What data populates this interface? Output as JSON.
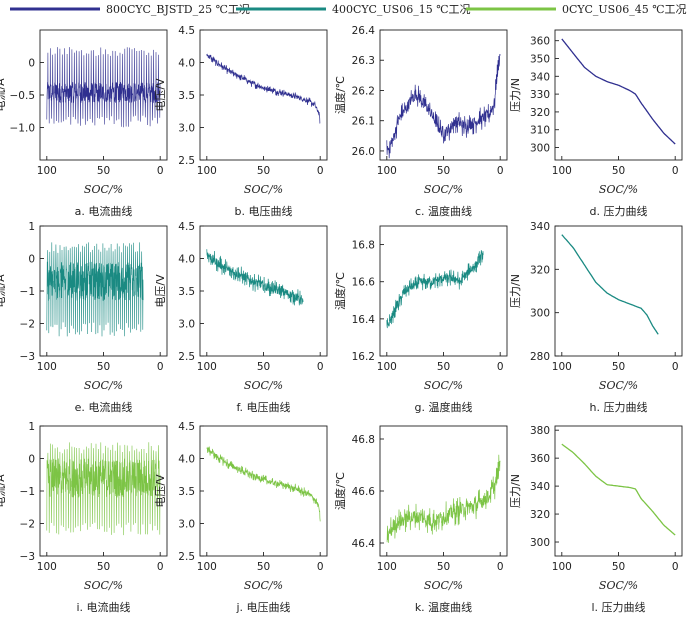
{
  "legend": [
    {
      "label": "800CYC_BJSTD_25 ℃工况",
      "color": "#303090"
    },
    {
      "label": "400CYC_US06_15 ℃工况",
      "color": "#1a8a82"
    },
    {
      "label": "0CYC_US06_45 ℃工况",
      "color": "#7cc445"
    }
  ],
  "chart_data": [
    {
      "type": "line",
      "caption": "a.  电流曲线",
      "xlabel": "SOC/%",
      "ylabel": "电流/A",
      "color": "#303090",
      "kind": "current",
      "xlim": [
        106,
        -6
      ],
      "xticks": [
        100,
        50,
        0
      ],
      "xdata": [
        100,
        0
      ],
      "ylim": [
        -1.5,
        0.5
      ],
      "yticks": [
        0,
        -0.5,
        -1.0
      ],
      "yticklabels": [
        "0",
        "−0.5",
        "−1.0"
      ],
      "series": [
        {
          "y_min": -1.0,
          "y_max": 0.25,
          "y_dense_low": -0.62,
          "y_dense_high": -0.3
        }
      ]
    },
    {
      "type": "line",
      "caption": "b.  电压曲线",
      "xlabel": "SOC/%",
      "ylabel": "电压/V",
      "color": "#303090",
      "kind": "curve",
      "xlim": [
        106,
        -6
      ],
      "xticks": [
        100,
        50,
        0
      ],
      "ylim": [
        2.5,
        4.5
      ],
      "yticks": [
        2.5,
        3.0,
        3.5,
        4.0,
        4.5
      ],
      "yticklabels": [
        "2.5",
        "3.0",
        "3.5",
        "4.0",
        "4.5"
      ],
      "noise": 0.08,
      "series": [
        {
          "x": [
            100,
            90,
            80,
            70,
            60,
            50,
            40,
            30,
            20,
            10,
            5,
            1,
            0
          ],
          "y": [
            4.12,
            3.98,
            3.86,
            3.78,
            3.68,
            3.61,
            3.56,
            3.52,
            3.47,
            3.4,
            3.35,
            3.22,
            3.05
          ]
        }
      ]
    },
    {
      "type": "line",
      "caption": "c.  温度曲线",
      "xlabel": "SOC/%",
      "ylabel": "温度/℃",
      "color": "#303090",
      "kind": "curve",
      "xlim": [
        106,
        -6
      ],
      "xticks": [
        100,
        50,
        0
      ],
      "ylim": [
        25.97,
        26.4
      ],
      "yticks": [
        26.0,
        26.1,
        26.2,
        26.3,
        26.4
      ],
      "yticklabels": [
        "26.0",
        "26.1",
        "26.2",
        "26.3",
        "26.4"
      ],
      "noise": 0.05,
      "series": [
        {
          "x": [
            100,
            95,
            90,
            80,
            75,
            70,
            60,
            55,
            50,
            45,
            40,
            30,
            20,
            10,
            5,
            3,
            0
          ],
          "y": [
            26.0,
            26.03,
            26.1,
            26.16,
            26.19,
            26.17,
            26.12,
            26.08,
            26.06,
            26.07,
            26.1,
            26.08,
            26.1,
            26.12,
            26.16,
            26.24,
            26.32
          ]
        }
      ]
    },
    {
      "type": "line",
      "caption": "d.  压力曲线",
      "xlabel": "SOC/%",
      "ylabel": "压力/N",
      "color": "#303090",
      "kind": "curve",
      "xlim": [
        106,
        -6
      ],
      "xticks": [
        100,
        50,
        0
      ],
      "ylim": [
        293,
        366
      ],
      "yticks": [
        300,
        310,
        320,
        330,
        340,
        350,
        360
      ],
      "yticklabels": [
        "300",
        "310",
        "320",
        "330",
        "340",
        "350",
        "360"
      ],
      "noise": 0,
      "series": [
        {
          "x": [
            100,
            90,
            80,
            70,
            60,
            50,
            40,
            35,
            30,
            20,
            10,
            0
          ],
          "y": [
            361,
            353,
            345,
            340,
            337,
            335,
            332,
            330,
            325,
            316,
            308,
            302
          ]
        }
      ]
    },
    {
      "type": "line",
      "caption": "e.  电流曲线",
      "xlabel": "SOC/%",
      "ylabel": "电流/A",
      "color": "#1a8a82",
      "kind": "current",
      "xlim": [
        106,
        -6
      ],
      "xticks": [
        100,
        50,
        0
      ],
      "xdata": [
        100,
        15
      ],
      "ylim": [
        -3,
        1
      ],
      "yticks": [
        1,
        0,
        -1,
        -2,
        -3
      ],
      "yticklabels": [
        "1",
        "0",
        "−1",
        "−2",
        "−3"
      ],
      "series": [
        {
          "y_min": -2.4,
          "y_max": 0.5,
          "y_dense_low": -1.3,
          "y_dense_high": -0.1
        }
      ]
    },
    {
      "type": "line",
      "caption": "f.  电压曲线",
      "xlabel": "SOC/%",
      "ylabel": "电压/V",
      "color": "#1a8a82",
      "kind": "curve",
      "xlim": [
        106,
        -6
      ],
      "xticks": [
        100,
        50,
        0
      ],
      "ylim": [
        2.5,
        4.5
      ],
      "yticks": [
        2.5,
        3.0,
        3.5,
        4.0,
        4.5
      ],
      "yticklabels": [
        "2.5",
        "3.0",
        "3.5",
        "4.0",
        "4.5"
      ],
      "noise": 0.18,
      "series": [
        {
          "x": [
            100,
            90,
            80,
            70,
            60,
            50,
            40,
            30,
            20,
            15
          ],
          "y": [
            4.08,
            3.92,
            3.82,
            3.74,
            3.65,
            3.58,
            3.52,
            3.47,
            3.4,
            3.32
          ]
        }
      ]
    },
    {
      "type": "line",
      "caption": "g.  温度曲线",
      "xlabel": "SOC/%",
      "ylabel": "温度/℃",
      "color": "#1a8a82",
      "kind": "curve",
      "xlim": [
        106,
        -6
      ],
      "xticks": [
        100,
        50,
        0
      ],
      "ylim": [
        16.2,
        16.9
      ],
      "yticks": [
        16.2,
        16.4,
        16.6,
        16.8
      ],
      "yticklabels": [
        "16.2",
        "16.4",
        "16.6",
        "16.8"
      ],
      "noise": 0.06,
      "series": [
        {
          "x": [
            100,
            95,
            90,
            85,
            80,
            75,
            70,
            60,
            50,
            40,
            35,
            30,
            25,
            20,
            15
          ],
          "y": [
            16.35,
            16.42,
            16.48,
            16.54,
            16.57,
            16.58,
            16.6,
            16.6,
            16.62,
            16.62,
            16.6,
            16.64,
            16.67,
            16.7,
            16.76
          ]
        }
      ]
    },
    {
      "type": "line",
      "caption": "h.  压力曲线",
      "xlabel": "SOC/%",
      "ylabel": "压力/N",
      "color": "#1a8a82",
      "kind": "curve",
      "xlim": [
        106,
        -6
      ],
      "xticks": [
        100,
        50,
        0
      ],
      "ylim": [
        280,
        340
      ],
      "yticks": [
        280,
        300,
        320,
        340
      ],
      "yticklabels": [
        "280",
        "300",
        "320",
        "340"
      ],
      "noise": 0,
      "series": [
        {
          "x": [
            100,
            90,
            80,
            70,
            60,
            50,
            40,
            30,
            25,
            20,
            15
          ],
          "y": [
            336,
            330,
            322,
            314,
            309,
            306,
            304,
            302,
            299,
            294,
            290
          ]
        }
      ]
    },
    {
      "type": "line",
      "caption": "i.  电流曲线",
      "xlabel": "SOC/%",
      "ylabel": "电流/A",
      "color": "#7cc445",
      "kind": "current",
      "xlim": [
        106,
        -6
      ],
      "xticks": [
        100,
        50,
        0
      ],
      "xdata": [
        100,
        0
      ],
      "ylim": [
        -3,
        1
      ],
      "yticks": [
        1,
        0,
        -1,
        -2,
        -3
      ],
      "yticklabels": [
        "1",
        "0",
        "−1",
        "−2",
        "−3"
      ],
      "series": [
        {
          "y_min": -2.4,
          "y_max": 0.5,
          "y_dense_low": -1.2,
          "y_dense_high": 0.0
        }
      ]
    },
    {
      "type": "line",
      "caption": "j.  电压曲线",
      "xlabel": "SOC/%",
      "ylabel": "电压/V",
      "color": "#7cc445",
      "kind": "curve",
      "xlim": [
        106,
        -6
      ],
      "xticks": [
        100,
        50,
        0
      ],
      "ylim": [
        2.5,
        4.5
      ],
      "yticks": [
        2.5,
        3.0,
        3.5,
        4.0,
        4.5
      ],
      "yticklabels": [
        "2.5",
        "3.0",
        "3.5",
        "4.0",
        "4.5"
      ],
      "noise": 0.1,
      "series": [
        {
          "x": [
            100,
            90,
            80,
            70,
            60,
            50,
            40,
            30,
            20,
            10,
            5,
            1,
            0
          ],
          "y": [
            4.15,
            4.02,
            3.9,
            3.82,
            3.74,
            3.67,
            3.62,
            3.58,
            3.52,
            3.45,
            3.38,
            3.25,
            3.0
          ]
        }
      ]
    },
    {
      "type": "line",
      "caption": "k.  温度曲线",
      "xlabel": "SOC/%",
      "ylabel": "温度/℃",
      "color": "#7cc445",
      "kind": "curve",
      "xlim": [
        106,
        -6
      ],
      "xticks": [
        100,
        50,
        0
      ],
      "ylim": [
        46.35,
        46.85
      ],
      "yticks": [
        46.4,
        46.6,
        46.8
      ],
      "yticklabels": [
        "46.4",
        "46.6",
        "46.8"
      ],
      "noise": 0.07,
      "series": [
        {
          "x": [
            100,
            95,
            90,
            80,
            70,
            60,
            50,
            40,
            30,
            20,
            10,
            5,
            2,
            0
          ],
          "y": [
            46.42,
            46.46,
            46.48,
            46.5,
            46.5,
            46.48,
            46.5,
            46.52,
            46.53,
            46.55,
            46.58,
            46.62,
            46.66,
            46.72
          ]
        }
      ]
    },
    {
      "type": "line",
      "caption": "l.  压力曲线",
      "xlabel": "SOC/%",
      "ylabel": "压力/N",
      "color": "#7cc445",
      "kind": "curve",
      "xlim": [
        106,
        -6
      ],
      "xticks": [
        100,
        50,
        0
      ],
      "ylim": [
        290,
        383
      ],
      "yticks": [
        300,
        320,
        340,
        360,
        380
      ],
      "yticklabels": [
        "300",
        "320",
        "340",
        "360",
        "380"
      ],
      "noise": 0,
      "series": [
        {
          "x": [
            100,
            90,
            80,
            70,
            60,
            50,
            40,
            35,
            30,
            20,
            10,
            0
          ],
          "y": [
            370,
            364,
            356,
            347,
            341,
            340,
            339,
            338,
            331,
            322,
            312,
            305
          ]
        }
      ]
    }
  ]
}
